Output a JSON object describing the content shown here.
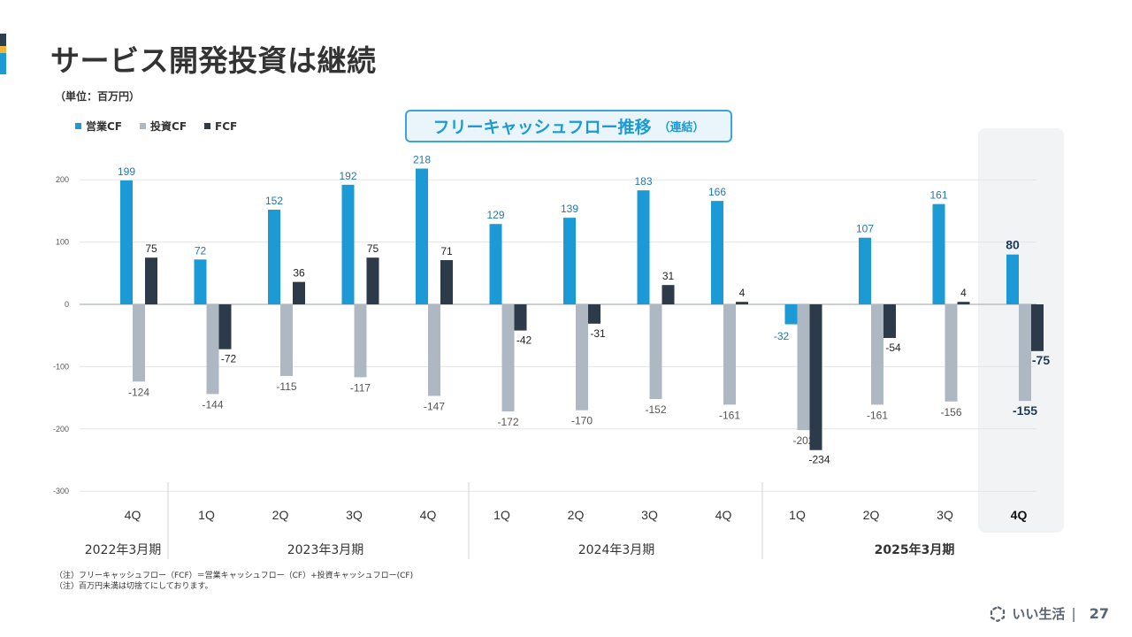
{
  "title": "サービス開発投資は継続",
  "unit": "（単位：百万円）",
  "chart_title": "フリーキャッシュフロー推移",
  "chart_title_sub": "（連結）",
  "legend": [
    {
      "label": "営業CF",
      "color": "#1b9ad6"
    },
    {
      "label": "投資CF",
      "color": "#aeb8c3"
    },
    {
      "label": "FCF",
      "color": "#2c3a4a"
    }
  ],
  "footnotes": [
    "（注）フリーキャッシュフロー（FCF）＝営業キャッシュフロー（CF）+投資キャッシュフロー(CF)",
    "（注）百万円未満は切捨てにしております。"
  ],
  "logo_text": "いい生活",
  "logo_separator": "|",
  "page_number": "27",
  "chart_data": {
    "type": "bar",
    "categories": [
      "4Q",
      "1Q",
      "2Q",
      "3Q",
      "4Q",
      "1Q",
      "2Q",
      "3Q",
      "4Q",
      "1Q",
      "2Q",
      "3Q",
      "4Q"
    ],
    "periods": [
      {
        "label": "2022年3月期",
        "start": 0,
        "end": 0
      },
      {
        "label": "2023年3月期",
        "start": 1,
        "end": 4
      },
      {
        "label": "2024年3月期",
        "start": 5,
        "end": 8
      },
      {
        "label": "2025年3月期",
        "start": 9,
        "end": 12
      }
    ],
    "highlight_index": 12,
    "series": [
      {
        "name": "営業CF",
        "color": "#1b9ad6",
        "values": [
          199,
          72,
          152,
          192,
          218,
          129,
          139,
          183,
          166,
          -32,
          107,
          161,
          80
        ]
      },
      {
        "name": "投資CF",
        "color": "#aeb8c3",
        "values": [
          -124,
          -144,
          -115,
          -117,
          -147,
          -172,
          -170,
          -152,
          -161,
          -202,
          -161,
          -156,
          -155
        ]
      },
      {
        "name": "FCF",
        "color": "#2c3a4a",
        "values": [
          75,
          -72,
          36,
          75,
          71,
          -42,
          -31,
          31,
          4,
          -234,
          -54,
          4,
          -75
        ]
      }
    ],
    "ylim": [
      -300,
      200
    ],
    "yticks": [
      200,
      100,
      0,
      -100,
      -200,
      -300
    ],
    "grid": true,
    "legend_position": "top-left"
  }
}
